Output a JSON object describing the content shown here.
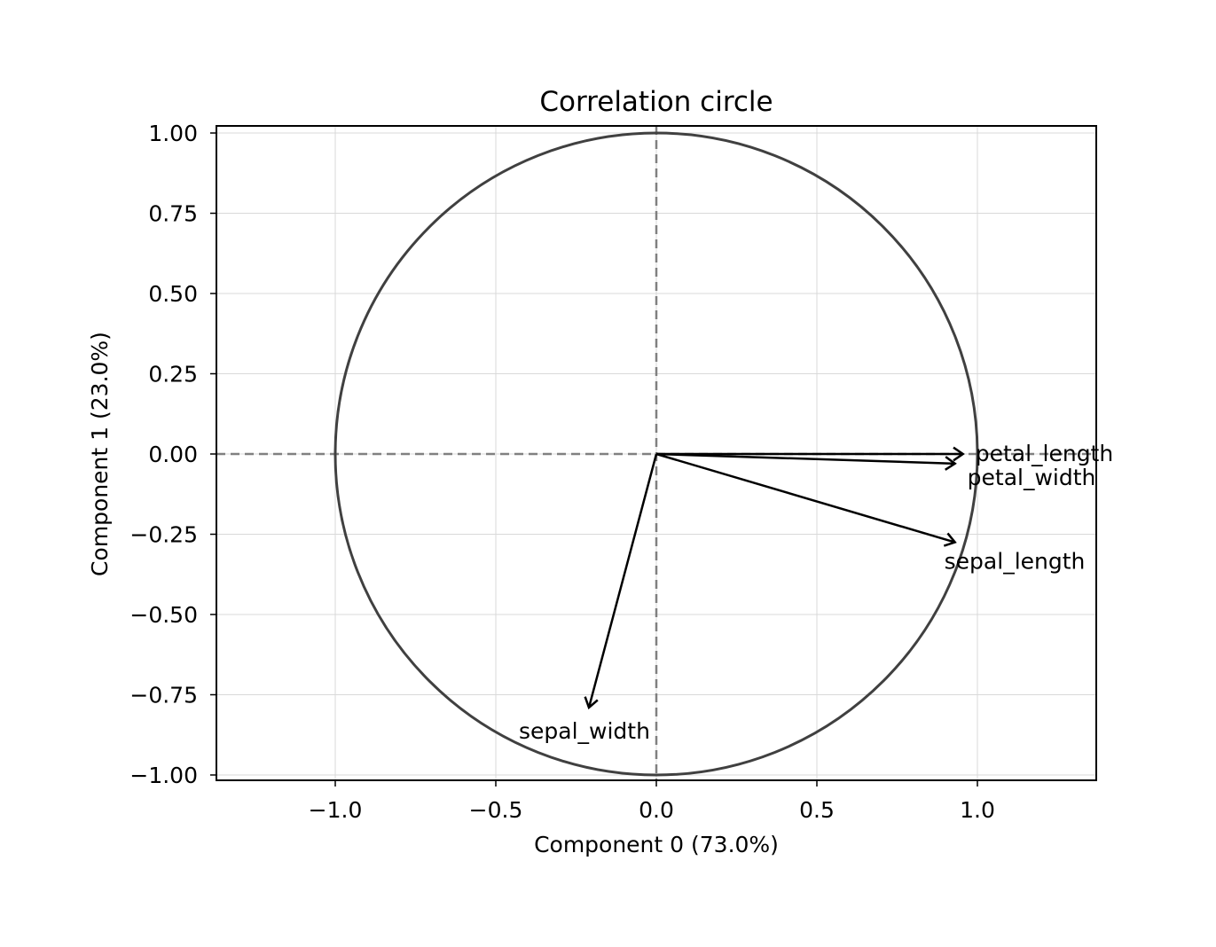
{
  "chart_data": {
    "type": "scatter",
    "title": "Correlation circle",
    "xlabel": "Component 0 (73.0%)",
    "ylabel": "Component 1 (23.0%)",
    "xlim": [
      -1.37,
      1.37
    ],
    "ylim": [
      -1.02,
      1.02
    ],
    "x_ticks": [
      -1.0,
      -0.5,
      0.0,
      0.5,
      1.0
    ],
    "x_tick_labels": [
      "−1.0",
      "−0.5",
      "0.0",
      "0.5",
      "1.0"
    ],
    "y_ticks": [
      1.0,
      0.75,
      0.5,
      0.25,
      0.0,
      -0.25,
      -0.5,
      -0.75,
      -1.0
    ],
    "y_tick_labels": [
      "1.00",
      "0.75",
      "0.50",
      "0.25",
      "0.00",
      "−0.25",
      "−0.50",
      "−0.75",
      "−1.00"
    ],
    "grid": true,
    "unit_circle": true,
    "reference_lines": "dashed lines at x = 0 and y = 0",
    "vectors": [
      {
        "name": "petal_length",
        "x": 0.955,
        "y": 0.0
      },
      {
        "name": "petal_width",
        "x": 0.93,
        "y": -0.03
      },
      {
        "name": "sepal_length",
        "x": 0.93,
        "y": -0.275
      },
      {
        "name": "sepal_width",
        "x": -0.21,
        "y": -0.79
      }
    ],
    "colors": {
      "arrow": "#000000",
      "circle": "#404040",
      "reference_line": "#808080",
      "grid": "#d9d9d9",
      "frame": "#000000"
    }
  }
}
